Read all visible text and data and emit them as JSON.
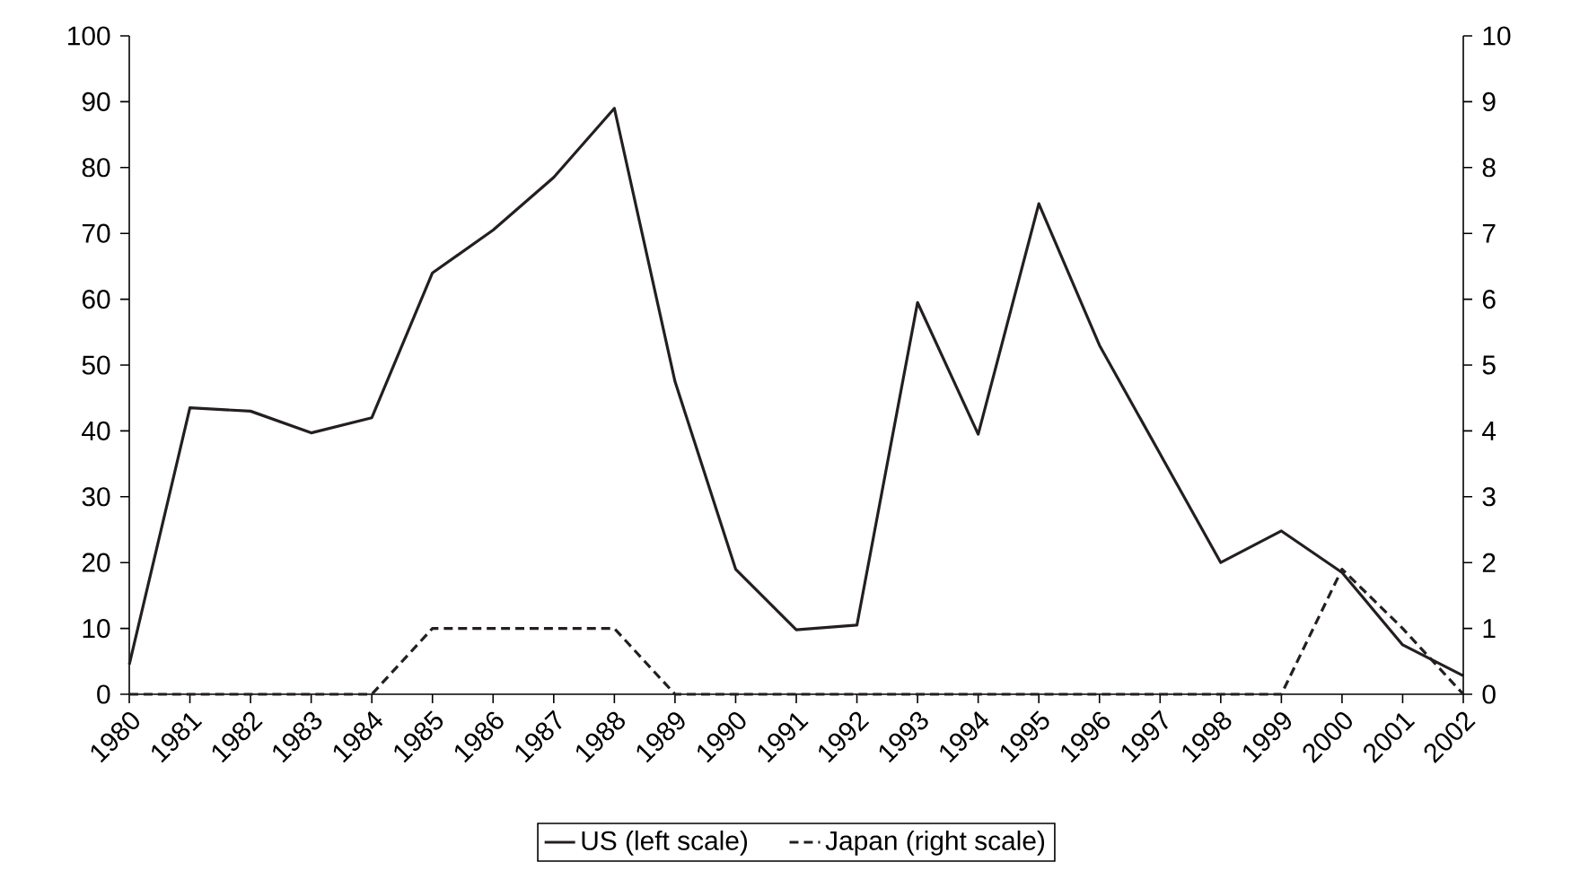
{
  "chart_data": {
    "type": "line",
    "categories": [
      "1980",
      "1981",
      "1982",
      "1983",
      "1984",
      "1985",
      "1986",
      "1987",
      "1988",
      "1989",
      "1990",
      "1991",
      "1992",
      "1993",
      "1994",
      "1995",
      "1996",
      "1997",
      "1998",
      "1999",
      "2000",
      "2001",
      "2002"
    ],
    "series": [
      {
        "name": "US (left scale)",
        "color": "#231f20",
        "line_style": "solid",
        "values": [
          4.5,
          43.5,
          43,
          39.7,
          42,
          64,
          70.5,
          78.5,
          89,
          47.5,
          19,
          9.8,
          10.5,
          59.5,
          39.5,
          74.5,
          53,
          36.5,
          20,
          24.8,
          18.5,
          7.5,
          2.8
        ]
      },
      {
        "name": "Japan (right scale)",
        "color": "#231f20",
        "line_style": "dashed",
        "axis": "y2",
        "values": [
          0,
          0,
          0,
          0,
          0,
          1,
          1,
          1,
          1,
          0,
          0,
          0,
          0,
          0,
          0,
          0,
          0,
          0,
          0,
          0,
          1.9,
          1,
          0
        ]
      }
    ],
    "ylim": [
      0,
      100
    ],
    "yticks": [
      0,
      10,
      20,
      30,
      40,
      50,
      60,
      70,
      80,
      90,
      100
    ],
    "y2lim": [
      0,
      10
    ],
    "y2ticks": [
      0,
      1,
      2,
      3,
      4,
      5,
      6,
      7,
      8,
      9,
      10
    ],
    "legend": "bottom"
  }
}
